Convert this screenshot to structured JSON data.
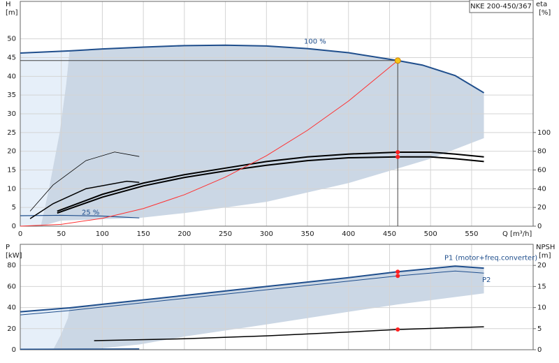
{
  "chart_data": [
    {
      "type": "line",
      "badge": "NKE 200-450/367",
      "y_label": "H",
      "y_unit": "[m]",
      "y2_label": "eta",
      "y2_unit": "[%]",
      "x_label": "Q [m³/h]",
      "xlim": [
        0,
        625
      ],
      "ylim": [
        0,
        60
      ],
      "y2lim": [
        0,
        240
      ],
      "grid": true,
      "xticks": [
        0,
        50,
        100,
        150,
        200,
        250,
        300,
        350,
        400,
        450,
        500,
        550
      ],
      "yticks": [
        0,
        5,
        10,
        15,
        20,
        25,
        30,
        35,
        40,
        45,
        50
      ],
      "y2ticks": [
        0,
        20,
        40,
        60,
        80,
        100
      ],
      "regions": [
        {
          "color": "#e6eff9",
          "x": [
            0,
            25,
            35,
            48,
            56,
            60,
            0
          ],
          "y": [
            0,
            0,
            10,
            25,
            38,
            46.8,
            46.2
          ]
        },
        {
          "color": "#cbd7e5",
          "x": [
            60,
            100,
            150,
            200,
            250,
            300,
            350,
            400,
            460,
            490,
            530,
            565,
            565,
            500,
            400,
            300,
            200,
            145,
            50,
            25,
            35,
            48,
            56
          ],
          "y": [
            46.8,
            47.3,
            47.8,
            48.2,
            48.3,
            48.1,
            47.4,
            46.3,
            44.2,
            43,
            40.2,
            35.6,
            23.5,
            18,
            11.5,
            6.5,
            3.5,
            2.2,
            1.5,
            0,
            10,
            25,
            38
          ]
        }
      ],
      "series": [
        {
          "name": "100 %",
          "color": "#1f4e8c",
          "width": 2,
          "x": [
            0,
            60,
            100,
            150,
            200,
            250,
            300,
            350,
            400,
            460,
            490,
            530,
            565
          ],
          "values": [
            46.2,
            46.8,
            47.3,
            47.8,
            48.2,
            48.3,
            48.1,
            47.4,
            46.3,
            44.2,
            43,
            40.2,
            35.6
          ]
        },
        {
          "name": "25 %",
          "color": "#1f4e8c",
          "width": 1.2,
          "x": [
            0,
            50,
            100,
            145
          ],
          "values": [
            2.8,
            2.9,
            2.7,
            2.2
          ]
        },
        {
          "color": "#000000",
          "width": 0.8,
          "x": [
            12,
            40,
            80,
            115,
            145
          ],
          "values": [
            4,
            11,
            17.5,
            19.8,
            18.6
          ]
        },
        {
          "color": "#000000",
          "width": 1.5,
          "x": [
            12,
            40,
            80,
            130,
            145
          ],
          "values": [
            2,
            6,
            10,
            12,
            11.7
          ]
        },
        {
          "color": "#000000",
          "width": 2,
          "axis": "y2",
          "x": [
            45,
            100,
            150,
            200,
            250,
            300,
            350,
            400,
            460,
            500,
            530,
            565
          ],
          "values": [
            16,
            34,
            46,
            55,
            62,
            69,
            74,
            77,
            79,
            79,
            77,
            74
          ]
        },
        {
          "color": "#000000",
          "width": 2,
          "axis": "y2",
          "x": [
            45,
            100,
            150,
            200,
            250,
            300,
            350,
            400,
            460,
            500,
            530,
            565
          ],
          "values": [
            14,
            31,
            43,
            52,
            59,
            65,
            70,
            73,
            74,
            74,
            72,
            69
          ]
        },
        {
          "color": "#ff3030",
          "width": 1,
          "x": [
            0,
            50,
            100,
            150,
            200,
            250,
            300,
            350,
            400,
            460
          ],
          "values": [
            0,
            0.5,
            2.1,
            4.7,
            8.4,
            13.1,
            18.8,
            25.6,
            33.4,
            44.2
          ]
        }
      ],
      "markers": [
        {
          "x": 460,
          "value": 44.2,
          "color": "#f5c518",
          "guides": true
        },
        {
          "x": 460,
          "value": 79,
          "axis": "y2",
          "color": "#ff2020"
        },
        {
          "x": 460,
          "value": 74,
          "axis": "y2",
          "color": "#ff2020"
        }
      ]
    },
    {
      "type": "line",
      "y_label": "P",
      "y_unit": "[kW]",
      "y2_label": "NPSH",
      "y2_unit": "[m]",
      "ylim": [
        0,
        100
      ],
      "y2lim": [
        0,
        25
      ],
      "grid": true,
      "yticks": [
        0,
        20,
        40,
        60,
        80
      ],
      "y2ticks": [
        0,
        5,
        10,
        15,
        20
      ],
      "regions": [
        {
          "color": "#e6eff9",
          "x": [
            0,
            40,
            50,
            58,
            60,
            0
          ],
          "y": [
            0,
            0,
            15,
            30,
            39.7,
            36
          ]
        },
        {
          "color": "#cbd7e5",
          "x": [
            60,
            100,
            200,
            300,
            400,
            460,
            530,
            565,
            565,
            460,
            400,
            300,
            200,
            145,
            100,
            40,
            50,
            58
          ],
          "y": [
            39.7,
            43.1,
            51.5,
            60,
            68.4,
            74,
            79.3,
            77.4,
            53.5,
            43,
            36,
            24,
            12.5,
            5,
            1.5,
            0,
            15,
            30
          ]
        }
      ],
      "series": [
        {
          "name": "P1 (motor+freq.converter)",
          "color": "#1f4e8c",
          "width": 2,
          "x": [
            0,
            60,
            100,
            200,
            300,
            400,
            460,
            530,
            565
          ],
          "values": [
            36,
            39.7,
            43.1,
            51.5,
            60,
            68.4,
            74,
            79.3,
            77.4
          ]
        },
        {
          "name": "P2",
          "color": "#1f4e8c",
          "width": 1,
          "x": [
            0,
            60,
            100,
            200,
            300,
            400,
            460,
            530,
            565
          ],
          "values": [
            33,
            37.2,
            40.5,
            48.7,
            56.9,
            65.1,
            70,
            74.7,
            72.7
          ]
        },
        {
          "color": "#000000",
          "width": 1.5,
          "axis": "y2",
          "x": [
            90,
            200,
            300,
            400,
            460,
            565
          ],
          "values": [
            2.15,
            2.6,
            3.3,
            4.2,
            4.8,
            5.45
          ]
        },
        {
          "color": "#1f4e8c",
          "width": 1.5,
          "x": [
            0,
            145
          ],
          "values": [
            0.5,
            0.8
          ]
        }
      ],
      "markers": [
        {
          "x": 460,
          "value": 74,
          "color": "#ff2020"
        },
        {
          "x": 460,
          "value": 70,
          "color": "#ff2020"
        },
        {
          "x": 460,
          "value": 4.8,
          "axis": "y2",
          "color": "#ff2020"
        }
      ]
    }
  ]
}
